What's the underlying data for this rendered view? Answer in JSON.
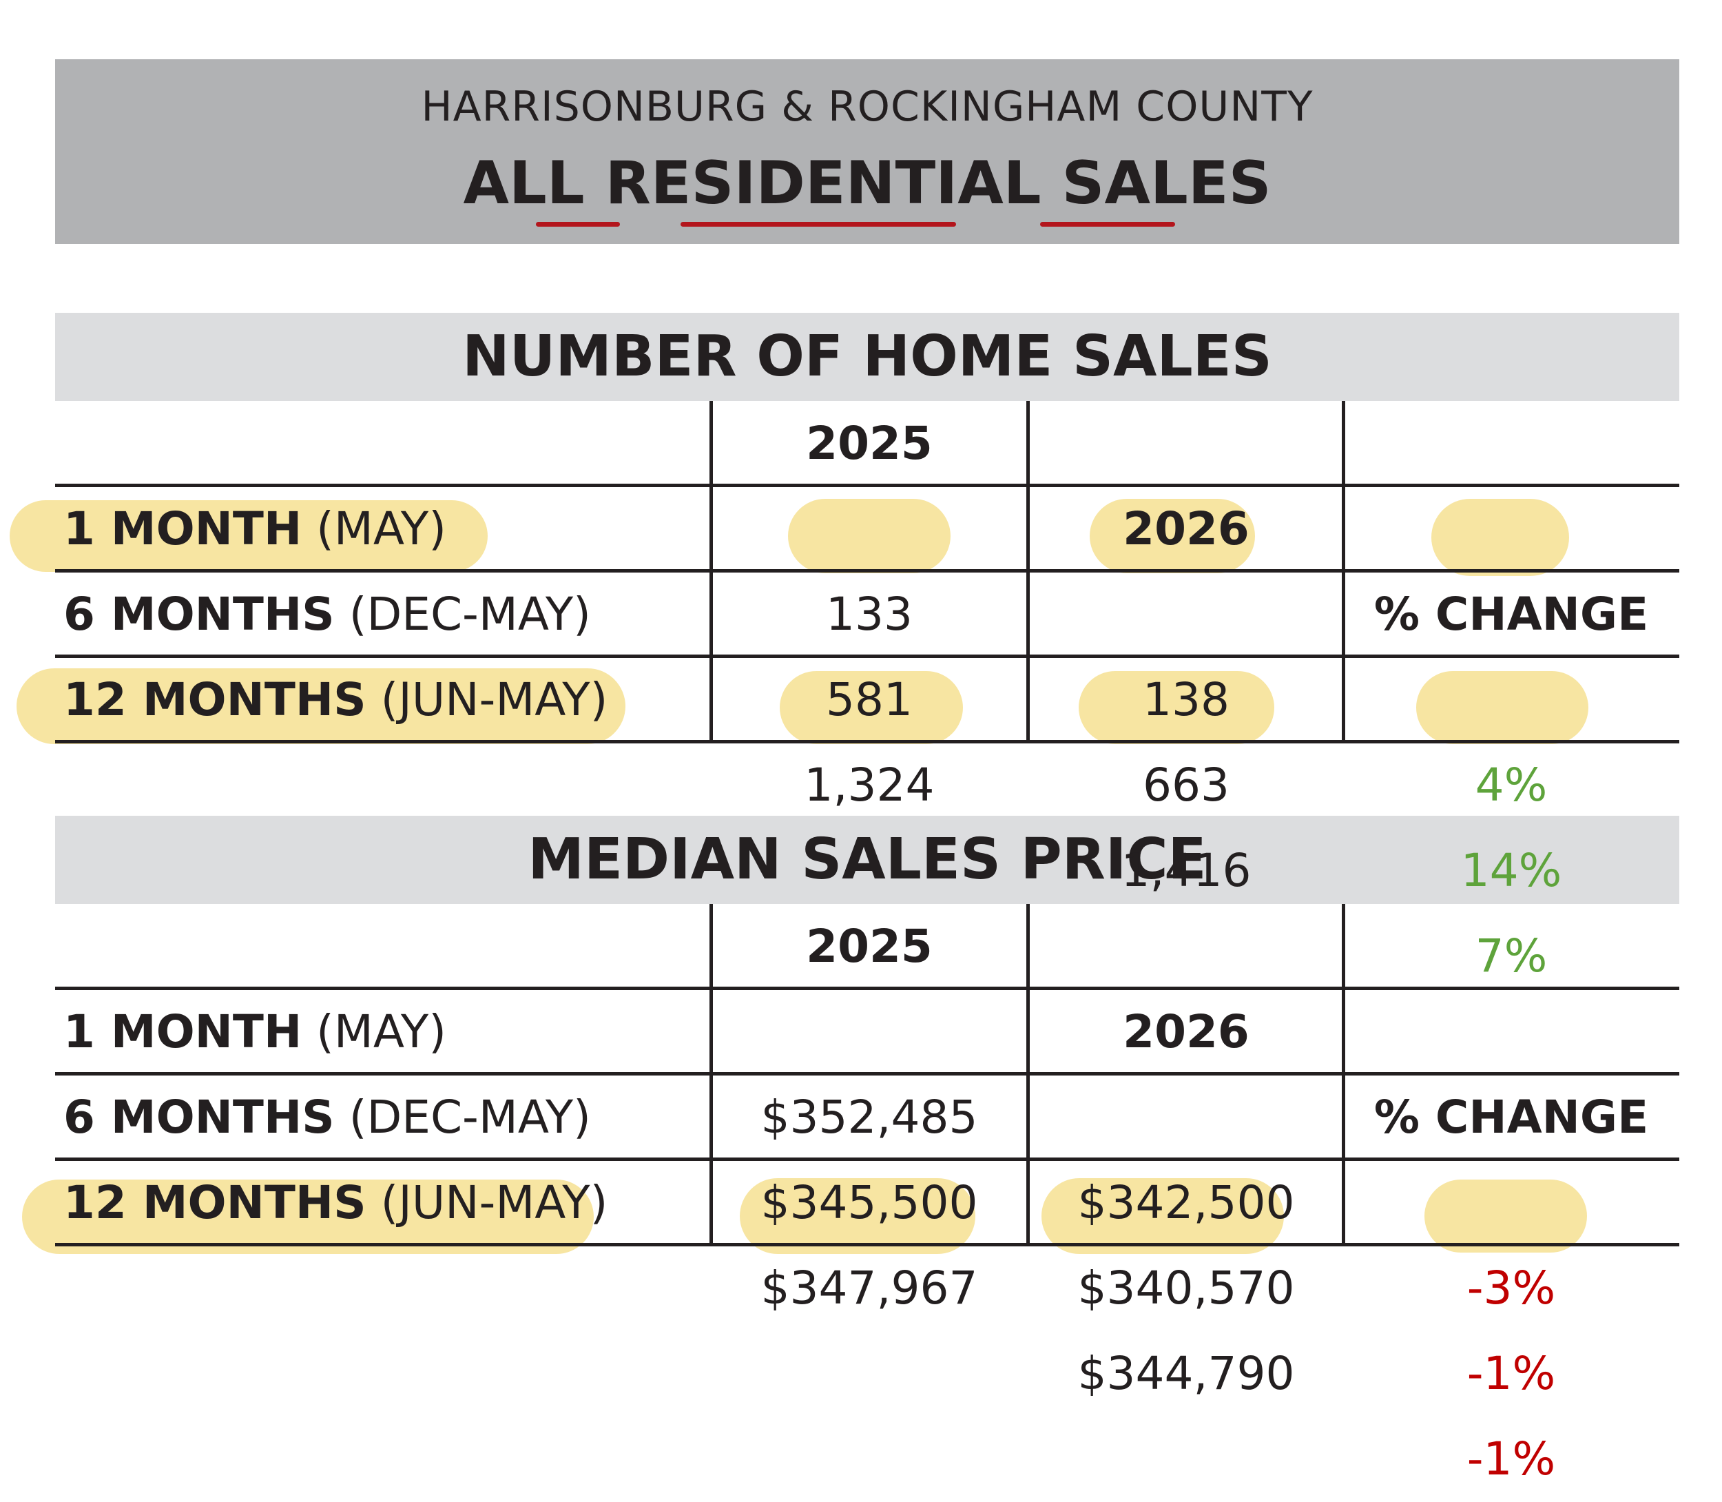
{
  "header": {
    "region": "HARRISONBURG & ROCKINGHAM COUNTY",
    "title": "ALL RESIDENTIAL SALES"
  },
  "colors": {
    "header_bg": "#b1b2b4",
    "section_bg": "#dcdddf",
    "underline": "#b3151c",
    "highlight": "#f6e092",
    "positive": "#5ea33b",
    "negative": "#c00000"
  },
  "home_sales": {
    "title": "NUMBER OF HOME SALES",
    "columns": [
      "2025",
      "2026",
      "% CHANGE"
    ],
    "rows": [
      {
        "period": "1 MONTH",
        "range": "(MAY)",
        "v2025": "133",
        "v2026": "138",
        "change": "4%",
        "highlighted": true
      },
      {
        "period": "6 MONTHS",
        "range": "(DEC-MAY)",
        "v2025": "581",
        "v2026": "663",
        "change": "14%",
        "highlighted": false
      },
      {
        "period": "12 MONTHS",
        "range": "(JUN-MAY)",
        "v2025": "1,324",
        "v2026": "1,416",
        "change": "7%",
        "highlighted": true
      }
    ]
  },
  "median_price": {
    "title": "MEDIAN SALES PRICE",
    "columns": [
      "2025",
      "2026",
      "% CHANGE"
    ],
    "rows": [
      {
        "period": "1 MONTH",
        "range": "(MAY)",
        "v2025": "$352,485",
        "v2026": "$342,500",
        "change": "-3%",
        "highlighted": false
      },
      {
        "period": "6 MONTHS",
        "range": "(DEC-MAY)",
        "v2025": "$345,500",
        "v2026": "$340,570",
        "change": "-1%",
        "highlighted": false
      },
      {
        "period": "12 MONTHS",
        "range": "(JUN-MAY)",
        "v2025": "$347,967",
        "v2026": "$344,790",
        "change": "-1%",
        "highlighted": true
      }
    ]
  }
}
